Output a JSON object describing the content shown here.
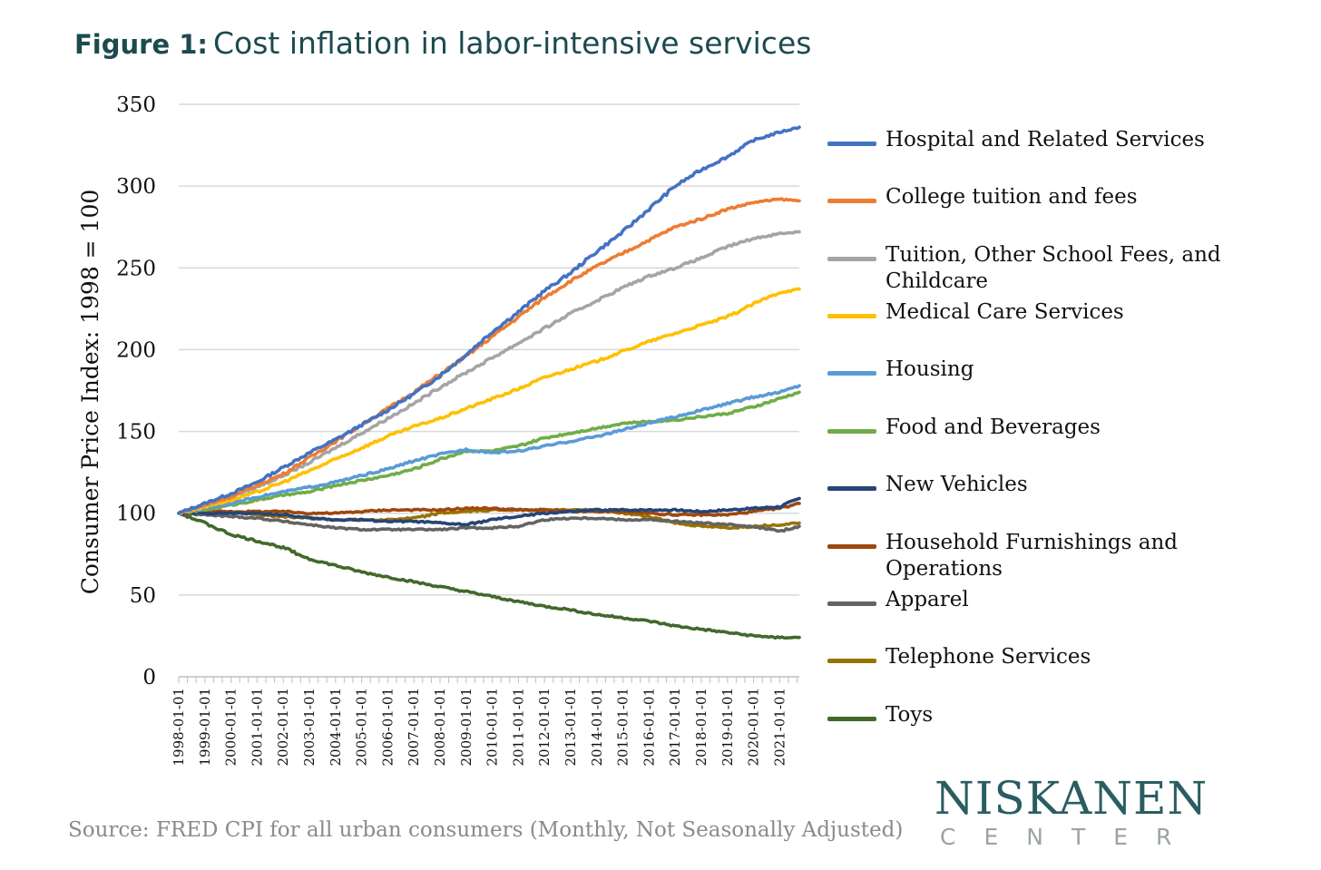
{
  "title": {
    "prefix": "Figure 1:",
    "main": "Cost inflation in labor-intensive services"
  },
  "source": "Source: FRED CPI for all urban consumers (Monthly, Not Seasonally Adjusted)",
  "logo": {
    "name": "NISKANEN",
    "sub": "CENTER"
  },
  "chart_data": {
    "type": "line",
    "title": "Cost inflation in labor-intensive services",
    "xlabel": "",
    "ylabel": "Consumer Price Index: 1998 = 100",
    "ylim": [
      0,
      350
    ],
    "yticks": [
      0,
      50,
      100,
      150,
      200,
      250,
      300,
      350
    ],
    "x_ticks": [
      "1998-01-01",
      "1999-01-01",
      "2000-01-01",
      "2001-01-01",
      "2002-01-01",
      "2003-01-01",
      "2004-01-01",
      "2005-01-01",
      "2006-01-01",
      "2007-01-01",
      "2008-01-01",
      "2009-01-01",
      "2010-01-01",
      "2011-01-01",
      "2012-01-01",
      "2013-01-01",
      "2014-01-01",
      "2015-01-01",
      "2016-01-01",
      "2017-01-01",
      "2018-01-01",
      "2019-01-01",
      "2020-01-01",
      "2021-01-01"
    ],
    "x_start": "1998-01",
    "x_end": "2021-09",
    "grid": "horizontal",
    "legend_position": "right",
    "x": [
      1998,
      1999,
      2000,
      2001,
      2002,
      2003,
      2004,
      2005,
      2006,
      2007,
      2008,
      2009,
      2010,
      2011,
      2012,
      2013,
      2014,
      2015,
      2016,
      2017,
      2018,
      2019,
      2020,
      2021,
      2021.75
    ],
    "series": [
      {
        "name": "Hospital and Related Services",
        "color": "#4472c4",
        "values": [
          100,
          106,
          112,
          119,
          128,
          137,
          145,
          154,
          163,
          173,
          184,
          197,
          211,
          223,
          236,
          247,
          260,
          272,
          286,
          300,
          310,
          318,
          328,
          333,
          336
        ]
      },
      {
        "name": "College tuition and fees",
        "color": "#ed7d31",
        "values": [
          100,
          105,
          110,
          117,
          124,
          134,
          144,
          154,
          164,
          174,
          185,
          196,
          208,
          220,
          232,
          242,
          251,
          259,
          267,
          275,
          280,
          286,
          290,
          292,
          291
        ]
      },
      {
        "name": "Tuition, Other School Fees, and Childcare",
        "color": "#a5a5a5",
        "values": [
          100,
          105,
          110,
          116,
          123,
          131,
          140,
          149,
          158,
          167,
          177,
          186,
          195,
          204,
          213,
          222,
          230,
          238,
          245,
          250,
          256,
          263,
          268,
          271,
          272
        ]
      },
      {
        "name": "Medical Care Services",
        "color": "#ffc000",
        "values": [
          100,
          104,
          108,
          113,
          119,
          126,
          133,
          140,
          147,
          153,
          158,
          164,
          170,
          176,
          183,
          188,
          193,
          199,
          205,
          210,
          215,
          220,
          228,
          235,
          237
        ]
      },
      {
        "name": "Housing",
        "color": "#5b9bd5",
        "values": [
          100,
          103,
          106,
          110,
          113,
          116,
          119,
          123,
          127,
          132,
          136,
          139,
          137,
          138,
          141,
          144,
          147,
          151,
          155,
          159,
          163,
          167,
          171,
          174,
          178
        ]
      },
      {
        "name": "Food and Beverages",
        "color": "#70ad47",
        "values": [
          100,
          102,
          105,
          108,
          111,
          113,
          117,
          120,
          123,
          127,
          133,
          138,
          138,
          141,
          146,
          149,
          152,
          155,
          156,
          157,
          159,
          161,
          165,
          170,
          174
        ]
      },
      {
        "name": "New Vehicles",
        "color": "#264478",
        "values": [
          100,
          100,
          100,
          100,
          99,
          97,
          96,
          96,
          95,
          95,
          94,
          93,
          96,
          98,
          100,
          101,
          102,
          102,
          102,
          102,
          101,
          102,
          103,
          104,
          109
        ]
      },
      {
        "name": "Household Furnishings and Operations",
        "color": "#9e480e",
        "values": [
          100,
          101,
          101,
          101,
          101,
          100,
          100,
          101,
          102,
          102,
          102,
          103,
          103,
          102,
          102,
          101,
          101,
          101,
          100,
          99,
          99,
          99,
          101,
          103,
          106
        ]
      },
      {
        "name": "Apparel",
        "color": "#636363",
        "values": [
          100,
          99,
          98,
          97,
          95,
          93,
          91,
          90,
          90,
          90,
          90,
          91,
          91,
          92,
          96,
          97,
          97,
          96,
          96,
          95,
          94,
          93,
          92,
          89,
          92
        ]
      },
      {
        "name": "Telephone Services",
        "color": "#997300",
        "values": [
          100,
          100,
          101,
          99,
          98,
          97,
          96,
          96,
          96,
          97,
          100,
          101,
          102,
          102,
          102,
          102,
          102,
          100,
          98,
          94,
          92,
          91,
          92,
          93,
          94
        ]
      },
      {
        "name": "Toys",
        "color": "#43682b",
        "values": [
          100,
          94,
          87,
          83,
          79,
          72,
          68,
          64,
          61,
          58,
          55,
          52,
          49,
          46,
          43,
          41,
          38,
          36,
          34,
          31,
          29,
          27,
          25,
          24,
          24
        ]
      }
    ]
  }
}
